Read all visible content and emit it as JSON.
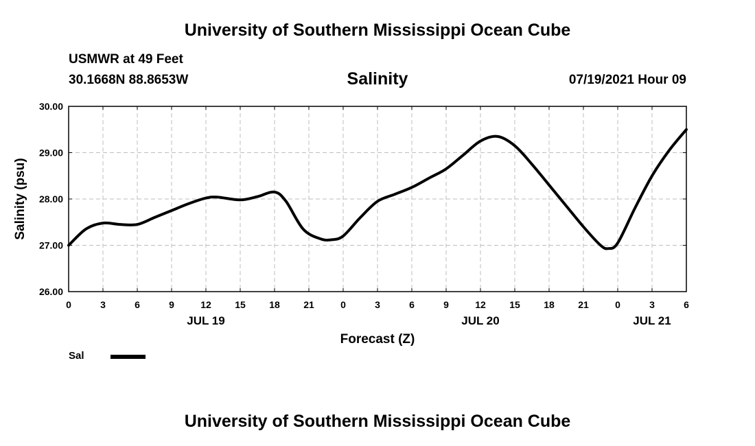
{
  "header": {
    "title": "University of Southern Mississippi Ocean Cube",
    "station": "USMWR at 49 Feet",
    "coords": "30.1668N  88.8653W",
    "variable": "Salinity",
    "timestamp": "07/19/2021 Hour 09"
  },
  "footer": {
    "title": "University of Southern Mississippi Ocean Cube"
  },
  "legend": {
    "label": "Sal",
    "color": "#000000"
  },
  "chart_data": {
    "type": "line",
    "title": "Salinity",
    "xlabel": "Forecast (Z)",
    "ylabel": "Salinity (psu)",
    "xlim": [
      0,
      54
    ],
    "ylim": [
      26.0,
      30.0
    ],
    "yticks": [
      "26.00",
      "27.00",
      "28.00",
      "29.00",
      "30.00"
    ],
    "xticks": [
      {
        "h": 0,
        "label": "0"
      },
      {
        "h": 3,
        "label": "3"
      },
      {
        "h": 6,
        "label": "6"
      },
      {
        "h": 9,
        "label": "9"
      },
      {
        "h": 12,
        "label": "12"
      },
      {
        "h": 15,
        "label": "15"
      },
      {
        "h": 18,
        "label": "18"
      },
      {
        "h": 21,
        "label": "21"
      },
      {
        "h": 24,
        "label": "0"
      },
      {
        "h": 27,
        "label": "3"
      },
      {
        "h": 30,
        "label": "6"
      },
      {
        "h": 33,
        "label": "9"
      },
      {
        "h": 36,
        "label": "12"
      },
      {
        "h": 39,
        "label": "15"
      },
      {
        "h": 42,
        "label": "18"
      },
      {
        "h": 45,
        "label": "21"
      },
      {
        "h": 48,
        "label": "0"
      },
      {
        "h": 51,
        "label": "3"
      },
      {
        "h": 54,
        "label": "6"
      }
    ],
    "date_labels": [
      {
        "h": 12,
        "label": "JUL 19"
      },
      {
        "h": 36,
        "label": "JUL 20"
      },
      {
        "h": 51,
        "label": "JUL 21"
      }
    ],
    "grid": true,
    "series": [
      {
        "name": "Sal",
        "color": "#000000",
        "x": [
          0,
          1.5,
          3,
          4.5,
          6,
          7.5,
          9,
          10.5,
          12,
          13,
          15,
          16.5,
          18,
          19,
          20.5,
          22,
          23,
          24,
          25.5,
          27,
          28.5,
          30,
          31.5,
          33,
          34.5,
          36,
          37.5,
          39,
          40.5,
          42,
          43.5,
          45,
          46.5,
          47.2,
          48,
          49.5,
          51,
          52.5,
          54
        ],
        "values": [
          27.0,
          27.35,
          27.48,
          27.45,
          27.45,
          27.6,
          27.75,
          27.9,
          28.02,
          28.04,
          27.98,
          28.05,
          28.15,
          27.95,
          27.35,
          27.14,
          27.12,
          27.2,
          27.6,
          27.95,
          28.1,
          28.25,
          28.45,
          28.65,
          28.95,
          29.25,
          29.35,
          29.15,
          28.75,
          28.3,
          27.85,
          27.4,
          27.0,
          26.93,
          27.05,
          27.8,
          28.5,
          29.05,
          29.5
        ]
      }
    ]
  }
}
